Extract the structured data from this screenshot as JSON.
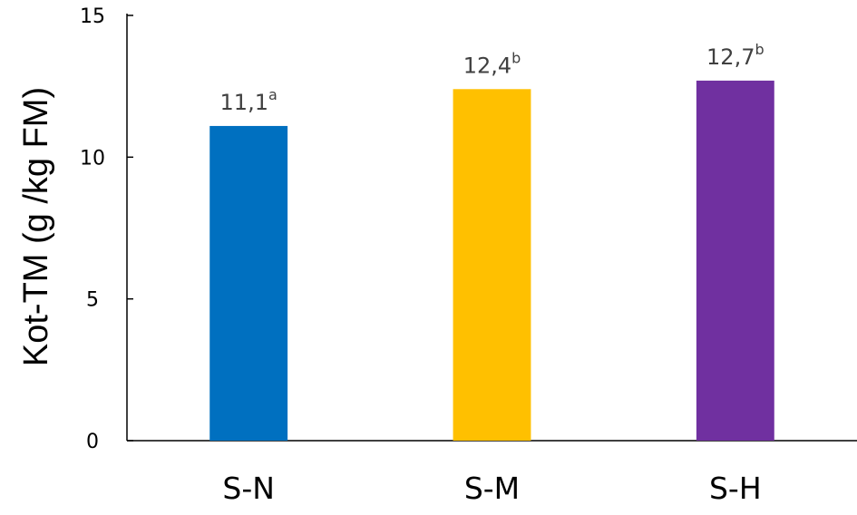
{
  "chart_data": {
    "type": "bar",
    "ylabel": "Kot-TM (g /kg FM)",
    "xlabel": "",
    "ylim": [
      0,
      15
    ],
    "yticks": [
      0,
      5,
      10,
      15
    ],
    "grid": false,
    "legend": "none",
    "categories": [
      "S-N",
      "S-M",
      "S-H"
    ],
    "values": [
      11.1,
      12.4,
      12.7
    ],
    "data_labels": [
      {
        "value": "11,1",
        "sup": "a"
      },
      {
        "value": "12,4",
        "sup": "b"
      },
      {
        "value": "12,7",
        "sup": "b"
      }
    ],
    "colors": [
      "#0070C0",
      "#FFC000",
      "#7030A0"
    ]
  }
}
